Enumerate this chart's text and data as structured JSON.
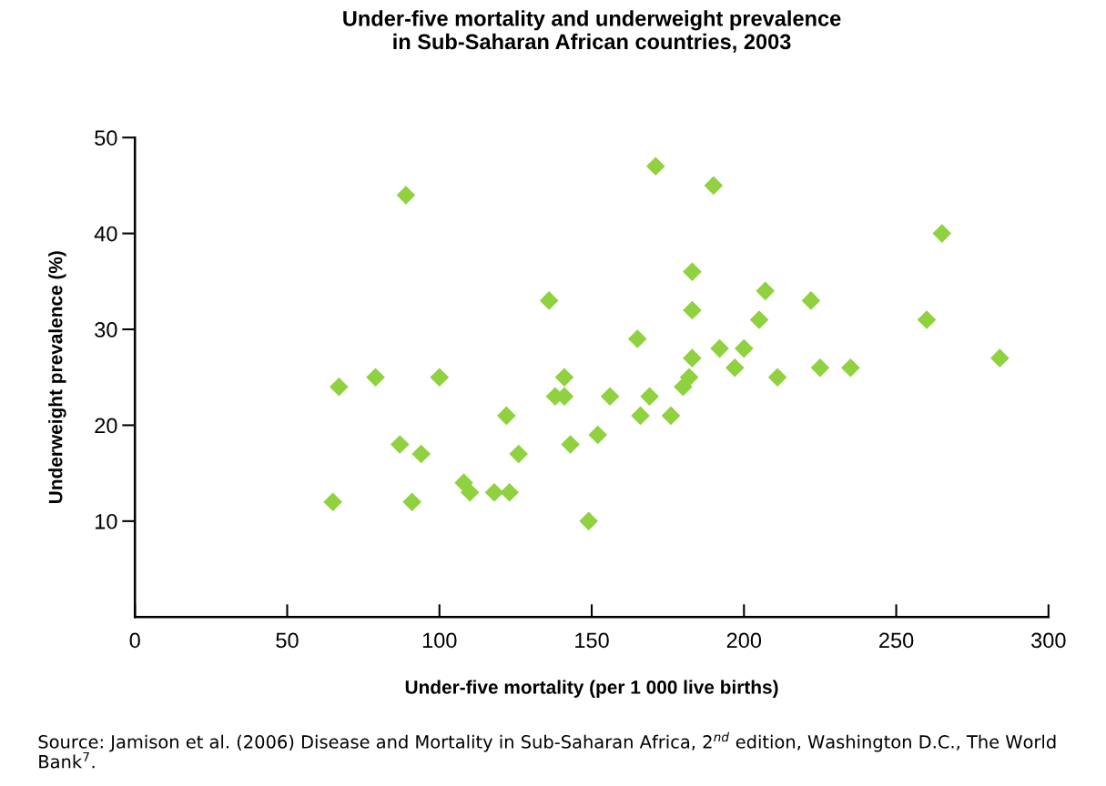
{
  "chart_data": {
    "type": "scatter",
    "title": "Under-five mortality and underweight prevalence\nin Sub-Saharan African countries, 2003",
    "xlabel": "Under-five mortality (per 1 000 live births)",
    "ylabel": "Underweight prevalence (%)",
    "x": [
      65,
      67,
      79,
      89,
      87,
      91,
      94,
      100,
      108,
      110,
      118,
      123,
      122,
      126,
      136,
      138,
      141,
      141,
      143,
      149,
      152,
      156,
      165,
      166,
      169,
      171,
      176,
      180,
      182,
      183,
      183,
      183,
      190,
      192,
      197,
      200,
      205,
      207,
      211,
      222,
      225,
      235,
      260,
      265,
      284
    ],
    "series": [
      {
        "color": "#8fd13f",
        "values": [
          12,
          24,
          25,
          44,
          18,
          12,
          17,
          25,
          14,
          13,
          13,
          13,
          21,
          17,
          33,
          23,
          25,
          23,
          18,
          10,
          19,
          23,
          29,
          21,
          23,
          47,
          21,
          24,
          25,
          27,
          36,
          32,
          45,
          28,
          26,
          28,
          31,
          34,
          25,
          33,
          26,
          26,
          31,
          40,
          27
        ]
      }
    ],
    "marker": "diamond",
    "grid": false,
    "legend": false,
    "xlim": [
      0,
      300
    ],
    "xticks": [
      0,
      50,
      100,
      150,
      200,
      250,
      300
    ],
    "ylim": [
      0,
      50
    ],
    "yticks": [
      10,
      20,
      30,
      40,
      50
    ],
    "annotations": [
      "Source: Jamison et al. (2006) Disease and Mortality in Sub-Saharan Africa, 2$^{nd}$ edition, Washington D.C., The World Bank$^{7}$."
    ]
  }
}
